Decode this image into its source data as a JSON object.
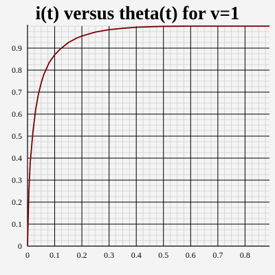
{
  "chart_data": {
    "type": "line",
    "title": "i(t) versus theta(t) for v=1",
    "xlabel": "",
    "ylabel": "",
    "xlim": [
      0,
      0.89
    ],
    "ylim": [
      0,
      1.0
    ],
    "grid": true,
    "x_ticks": [
      "0",
      "0.1",
      "0.2",
      "0.3",
      "0.4",
      "0.5",
      "0.6",
      "0.7",
      "0.8"
    ],
    "y_ticks": [
      "0",
      "0.1",
      "0.2",
      "0.3",
      "0.4",
      "0.5",
      "0.6",
      "0.7",
      "0.8",
      "0.9"
    ],
    "series": [
      {
        "color": "#7a0000",
        "x": [
          0,
          0.005,
          0.01,
          0.02,
          0.03,
          0.04,
          0.05,
          0.06,
          0.08,
          0.1,
          0.12,
          0.15,
          0.18,
          0.2,
          0.25,
          0.3,
          0.35,
          0.4,
          0.45,
          0.5,
          0.6,
          0.7,
          0.8,
          0.89
        ],
        "y": [
          0,
          0.25,
          0.38,
          0.52,
          0.62,
          0.69,
          0.74,
          0.78,
          0.835,
          0.87,
          0.895,
          0.925,
          0.945,
          0.955,
          0.973,
          0.984,
          0.99,
          0.995,
          0.997,
          0.999,
          1.0,
          1.0,
          1.0,
          1.0
        ]
      }
    ]
  }
}
